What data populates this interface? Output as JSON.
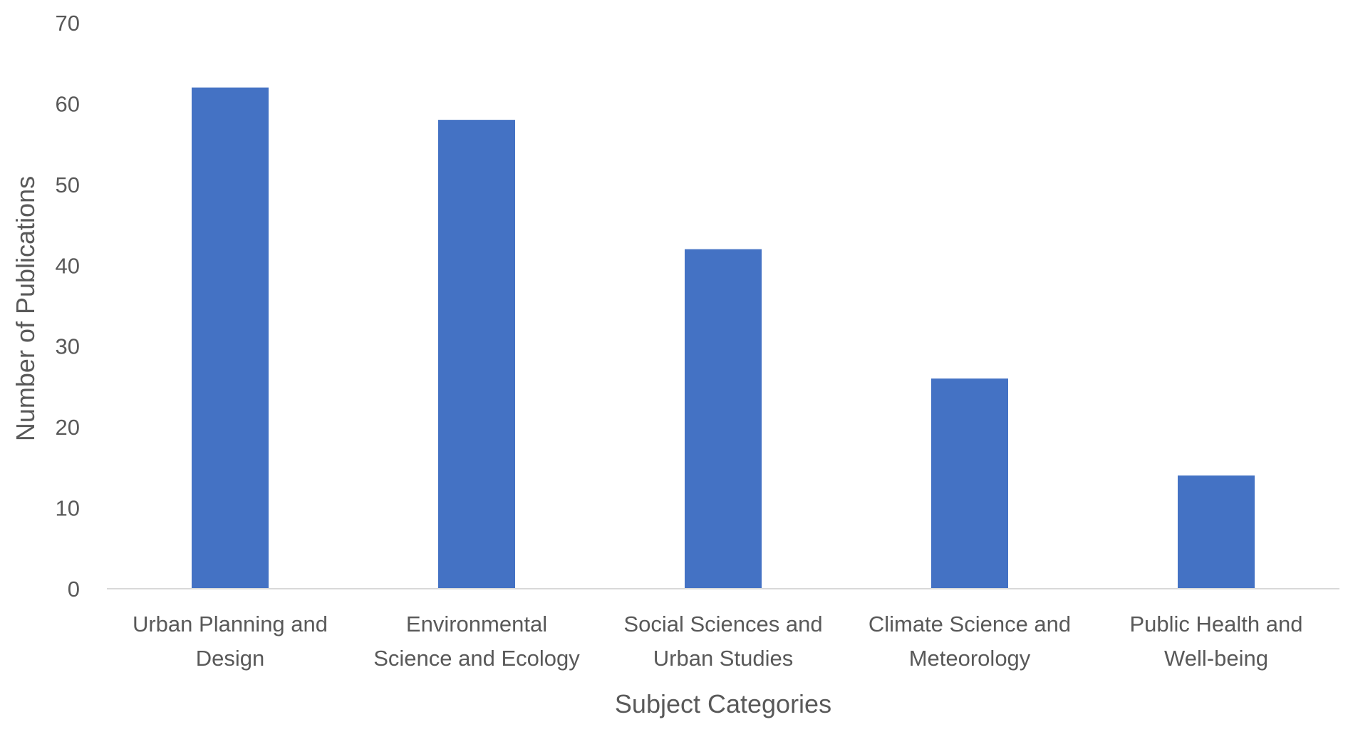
{
  "chart_data": {
    "type": "bar",
    "categories": [
      [
        "Urban Planning and",
        "Design"
      ],
      [
        "Environmental",
        "Science and Ecology"
      ],
      [
        "Social Sciences and",
        "Urban Studies"
      ],
      [
        "Climate Science and",
        "Meteorology"
      ],
      [
        "Public Health and",
        "Well-being"
      ]
    ],
    "values": [
      62,
      58,
      42,
      26,
      14
    ],
    "xlabel": "Subject Categories",
    "ylabel": "Number of Publications",
    "ylim": [
      0,
      70
    ],
    "yticks": [
      0,
      10,
      20,
      30,
      40,
      50,
      60,
      70
    ],
    "bar_color": "#4472C4",
    "grid": false,
    "legend": "none"
  }
}
